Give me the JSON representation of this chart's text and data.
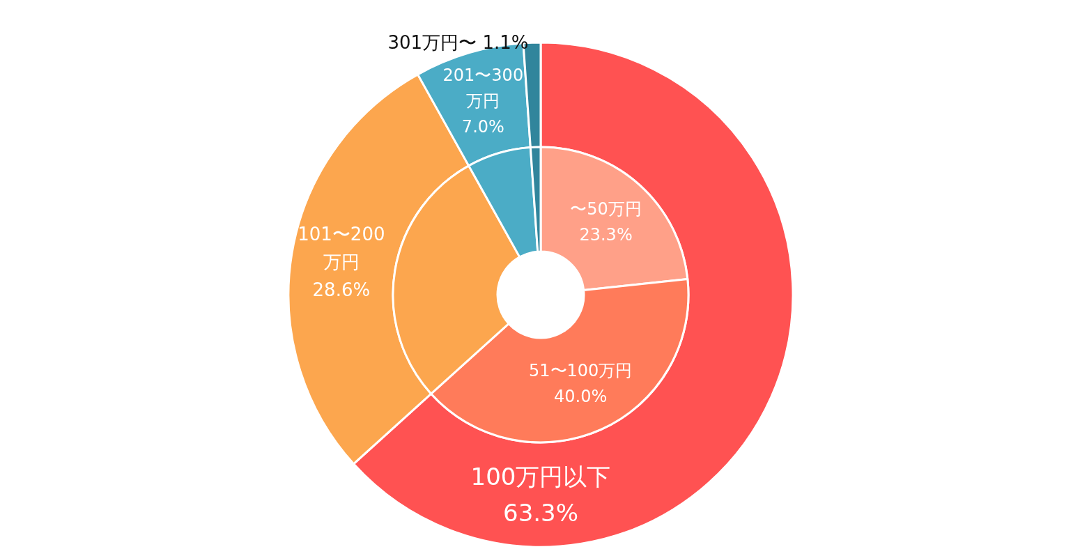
{
  "chart_data": [
    {
      "type": "donut",
      "categories": [
        "100万円以下",
        "101〜200万円",
        "201〜300万円",
        "301万円〜"
      ],
      "values": [
        63.3,
        28.6,
        7.0,
        1.1
      ],
      "value_labels": [
        "63.3%",
        "28.6%",
        "7.0%",
        "1.1%"
      ],
      "colors": [
        "#ff5252",
        "#fca64e",
        "#4bacc6",
        "#31859c"
      ]
    },
    {
      "type": "donut",
      "categories": [
        "〜50万円",
        "51〜100万円",
        null,
        null,
        null
      ],
      "values": [
        23.3,
        40.0,
        28.6,
        7.0,
        1.1
      ],
      "value_labels": [
        "23.3%",
        "40.0%",
        null,
        null,
        null
      ],
      "colors": [
        "#ffa088",
        "#ff7b5a",
        "#fca64e",
        "#4bacc6",
        "#31859c"
      ]
    }
  ]
}
